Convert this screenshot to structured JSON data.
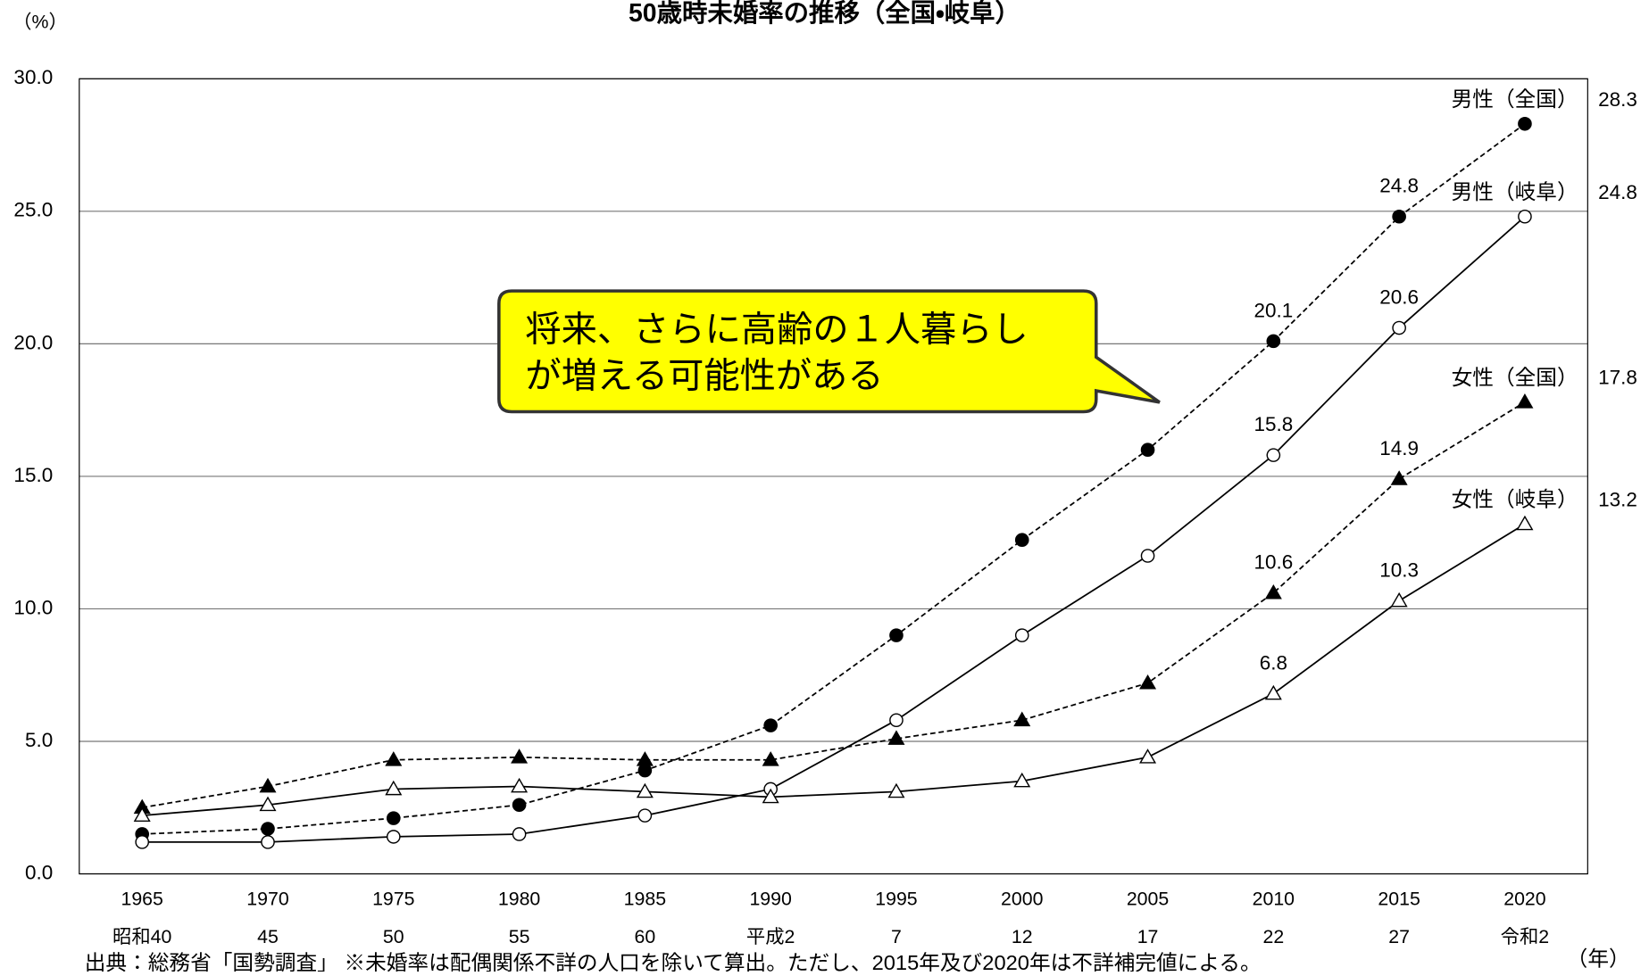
{
  "chart_data": {
    "type": "line",
    "title": "50歳時未婚率の推移（全国・岐阜）",
    "y_unit_label": "（%）",
    "x_unit_label": "（年）",
    "source_note": "出典：総務省「国勢調査」 ※未婚率は配偶関係不詳の人口を除いて算出。ただし、2015年及び2020年は不詳補完値による。",
    "annotation": [
      "将来、さらに高齢の１人暮らし",
      "が増える可能性がある"
    ],
    "categories": [
      "1965",
      "1970",
      "1975",
      "1980",
      "1985",
      "1990",
      "1995",
      "2000",
      "2005",
      "2010",
      "2015",
      "2020"
    ],
    "era_labels": [
      "昭和40",
      "45",
      "50",
      "55",
      "60",
      "平成2",
      "7",
      "12",
      "17",
      "22",
      "27",
      "令和2"
    ],
    "ylim": [
      0,
      30
    ],
    "yticks": [
      {
        "value": 0,
        "label": "0.0"
      },
      {
        "value": 5,
        "label": "5.0"
      },
      {
        "value": 10,
        "label": "10.0"
      },
      {
        "value": 15,
        "label": "15.0"
      },
      {
        "value": 20,
        "label": "20.0"
      },
      {
        "value": 25,
        "label": "25.0"
      },
      {
        "value": 30,
        "label": "30.0"
      }
    ],
    "grid": true,
    "series": [
      {
        "name": "男性（全国）",
        "color": "#000000",
        "marker": "circle",
        "marker_filled": true,
        "dashed": true,
        "values": [
          1.5,
          1.7,
          2.1,
          2.6,
          3.9,
          5.6,
          9.0,
          12.6,
          16.0,
          20.1,
          24.8,
          28.3
        ]
      },
      {
        "name": "男性（岐阜）",
        "color": "#000000",
        "marker": "circle",
        "marker_filled": false,
        "dashed": false,
        "values": [
          1.2,
          1.2,
          1.4,
          1.5,
          2.2,
          3.2,
          5.8,
          9.0,
          12.0,
          15.8,
          20.6,
          24.8
        ]
      },
      {
        "name": "女性（全国）",
        "color": "#000000",
        "marker": "triangle",
        "marker_filled": true,
        "dashed": true,
        "values": [
          2.5,
          3.3,
          4.3,
          4.4,
          4.3,
          4.3,
          5.1,
          5.8,
          7.2,
          10.6,
          14.9,
          17.8
        ]
      },
      {
        "name": "女性（岐阜）",
        "color": "#000000",
        "marker": "triangle",
        "marker_filled": false,
        "dashed": false,
        "values": [
          2.2,
          2.6,
          3.2,
          3.3,
          3.1,
          2.9,
          3.1,
          3.5,
          4.4,
          6.8,
          10.3,
          13.2
        ]
      }
    ]
  }
}
